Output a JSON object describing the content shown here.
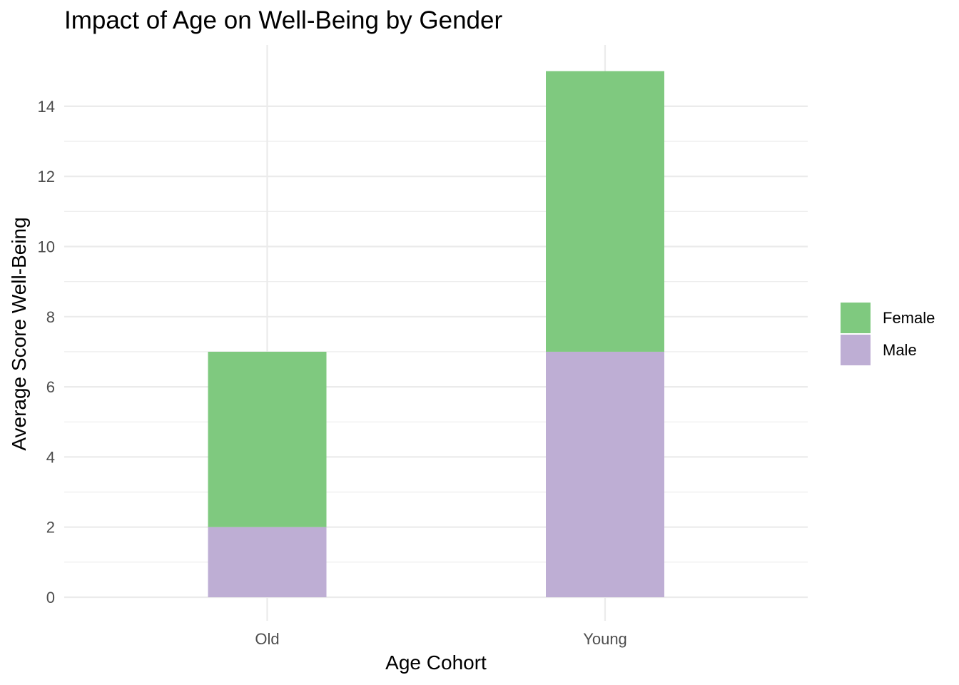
{
  "chart_data": {
    "type": "bar",
    "stacked": true,
    "title": "Impact of Age on Well-Being by Gender",
    "xlabel": "Age Cohort",
    "ylabel": "Average Score Well-Being",
    "categories": [
      "Old",
      "Young"
    ],
    "series": [
      {
        "name": "Male",
        "values": [
          2,
          7
        ],
        "color": "#beaed4"
      },
      {
        "name": "Female",
        "values": [
          5,
          8
        ],
        "color": "#7fc97f"
      }
    ],
    "ylim": [
      0,
      15
    ],
    "yticks": [
      0,
      2,
      4,
      6,
      8,
      10,
      12,
      14
    ],
    "ytick_labels": [
      "0",
      "2",
      "4",
      "6",
      "8",
      "10",
      "12",
      "14"
    ],
    "grid": true,
    "legend": {
      "position": "right",
      "entries": [
        {
          "label": "Female",
          "color": "#7fc97f"
        },
        {
          "label": "Male",
          "color": "#beaed4"
        }
      ]
    }
  }
}
